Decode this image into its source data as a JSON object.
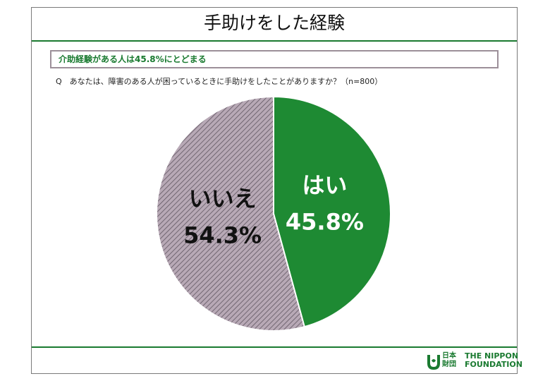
{
  "title": "手助けをした経験",
  "subtitle": "介助経験がある人は45.8%にとどまる",
  "question": "Q　あなたは、障害のある人が困っているときに手助けをしたことがありますか？（n=800）",
  "chart_data": {
    "type": "pie",
    "labels": [
      "はい",
      "いいえ"
    ],
    "values": [
      45.8,
      54.3
    ],
    "value_labels": [
      "45.8%",
      "54.3%"
    ],
    "colors": [
      "#1e8a33",
      "#b8a9b6"
    ]
  },
  "logo": {
    "jp_line1": "日本",
    "jp_line2": "財団",
    "en_line1": "THE NIPPON",
    "en_line2": "FOUNDATION"
  }
}
